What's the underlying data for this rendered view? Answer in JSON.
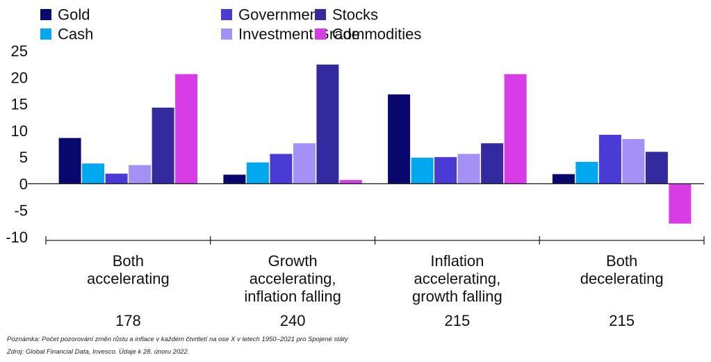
{
  "chart_data": {
    "type": "bar",
    "categories": [
      [
        "Both",
        "accelerating"
      ],
      [
        "Growth",
        "accelerating,",
        "inflation falling"
      ],
      [
        "Inflation",
        "accelerating,",
        "growth falling"
      ],
      [
        "Both",
        "decelerating"
      ]
    ],
    "observation_counts": [
      "178",
      "240",
      "215",
      "215"
    ],
    "series": [
      {
        "name": "Gold",
        "color": "#08086e",
        "values": [
          8.6,
          1.7,
          16.8,
          1.8
        ]
      },
      {
        "name": "Cash",
        "color": "#00a8f0",
        "values": [
          3.8,
          4.0,
          4.9,
          4.1
        ]
      },
      {
        "name": "Government",
        "color": "#4b3bd6",
        "values": [
          1.9,
          5.6,
          5.0,
          9.2
        ]
      },
      {
        "name": "Investment Grade",
        "color": "#a391f5",
        "values": [
          3.5,
          7.6,
          5.6,
          8.4
        ]
      },
      {
        "name": "Stocks",
        "color": "#322a9e",
        "values": [
          14.3,
          22.4,
          7.6,
          6.0
        ]
      },
      {
        "name": "Commodities",
        "color": "#d73ce6",
        "values": [
          20.6,
          0.7,
          20.6,
          -7.5
        ]
      }
    ],
    "ylim": [
      -10,
      25
    ],
    "yticks": [
      "25",
      "20",
      "15",
      "10",
      "5",
      "0",
      "-5",
      "-10"
    ],
    "grid": false,
    "legend_position": "top-left"
  },
  "notes": {
    "note": "Poznámka: Počet pozorování změn růstu a inflace v každém čtvrtletí na ose X v letech 1950–2021 pro Spojené státy",
    "source": "Zdroj: Global Financial Data, Invesco. Údaje k  28. únoru 2022."
  }
}
